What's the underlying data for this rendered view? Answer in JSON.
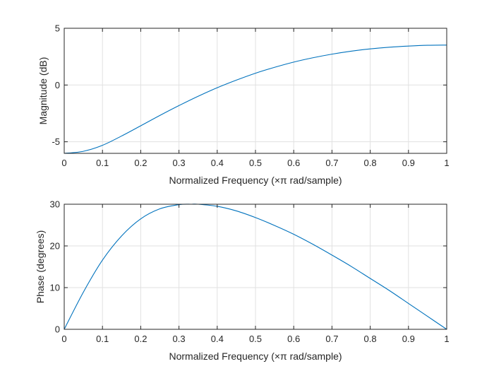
{
  "figure": {
    "background": "#ffffff"
  },
  "chart_data": [
    {
      "type": "line",
      "title": "",
      "xlabel": "Normalized Frequency  (×π rad/sample)",
      "ylabel": "Magnitude (dB)",
      "xlim": [
        0,
        1
      ],
      "ylim": [
        -6.02,
        5
      ],
      "xticks": [
        0,
        0.1,
        0.2,
        0.3,
        0.4,
        0.5,
        0.6,
        0.7,
        0.8,
        0.9,
        1
      ],
      "xtick_labels": [
        "0",
        "0.1",
        "0.2",
        "0.3",
        "0.4",
        "0.5",
        "0.6",
        "0.7",
        "0.8",
        "0.9",
        "1"
      ],
      "yticks": [
        -5,
        0,
        5
      ],
      "ytick_labels": [
        "-5",
        "0",
        "5"
      ],
      "grid": true,
      "series": [
        {
          "name": "magnitude",
          "color": "#0072bd",
          "x": [
            0,
            0.05,
            0.1,
            0.15,
            0.2,
            0.25,
            0.3,
            0.35,
            0.4,
            0.45,
            0.5,
            0.55,
            0.6,
            0.65,
            0.7,
            0.75,
            0.8,
            0.85,
            0.9,
            0.95,
            1
          ],
          "y": [
            -6.02,
            -5.84,
            -5.31,
            -4.49,
            -3.59,
            -2.68,
            -1.81,
            -0.99,
            -0.24,
            0.43,
            1.04,
            1.56,
            2.02,
            2.4,
            2.72,
            2.98,
            3.18,
            3.33,
            3.43,
            3.5,
            3.52
          ]
        }
      ]
    },
    {
      "type": "line",
      "title": "",
      "xlabel": "Normalized Frequency  (×π rad/sample)",
      "ylabel": "Phase (degrees)",
      "xlim": [
        0,
        1
      ],
      "ylim": [
        0,
        30
      ],
      "xticks": [
        0,
        0.1,
        0.2,
        0.3,
        0.4,
        0.5,
        0.6,
        0.7,
        0.8,
        0.9,
        1
      ],
      "xtick_labels": [
        "0",
        "0.1",
        "0.2",
        "0.3",
        "0.4",
        "0.5",
        "0.6",
        "0.7",
        "0.8",
        "0.9",
        "1"
      ],
      "yticks": [
        0,
        10,
        20,
        30
      ],
      "ytick_labels": [
        "0",
        "10",
        "20",
        "30"
      ],
      "grid": true,
      "series": [
        {
          "name": "phase",
          "color": "#0072bd",
          "x": [
            0,
            0.05,
            0.1,
            0.15,
            0.2,
            0.25,
            0.3,
            0.333,
            0.35,
            0.4,
            0.45,
            0.5,
            0.55,
            0.6,
            0.65,
            0.7,
            0.75,
            0.8,
            0.85,
            0.9,
            0.95,
            1
          ],
          "y": [
            0,
            8.9,
            16.6,
            22.4,
            26.5,
            28.9,
            29.9,
            30.0,
            30.0,
            29.5,
            28.4,
            26.8,
            24.9,
            22.8,
            20.4,
            17.8,
            15.1,
            12.2,
            9.3,
            6.2,
            3.1,
            0
          ]
        }
      ]
    }
  ]
}
